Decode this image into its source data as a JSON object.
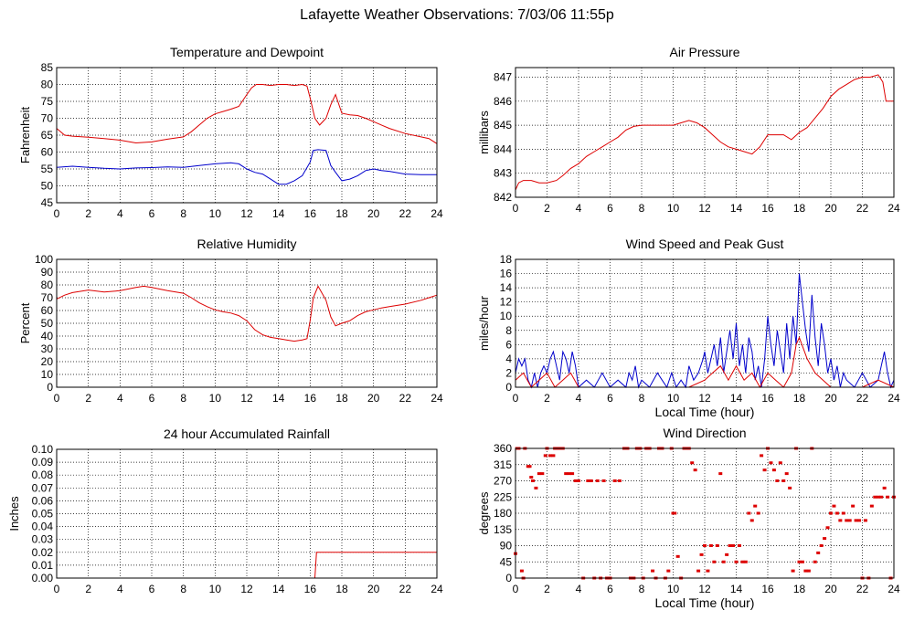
{
  "page_title": "Lafayette Weather Observations: 7/03/06 11:55p",
  "colors": {
    "red": "#dd0000",
    "blue": "#0000cc",
    "grid": "#000000",
    "axis": "#000000"
  },
  "chart_data": [
    {
      "id": "temp",
      "type": "line",
      "title": "Temperature and Dewpoint",
      "xlabel": "",
      "ylabel": "Fahrenheit",
      "xlim": [
        0,
        24
      ],
      "ylim": [
        45,
        85
      ],
      "xticks": [
        0,
        2,
        4,
        6,
        8,
        10,
        12,
        14,
        16,
        18,
        20,
        22,
        24
      ],
      "yticks": [
        45,
        50,
        55,
        60,
        65,
        70,
        75,
        80,
        85
      ],
      "grid": true,
      "series": [
        {
          "color": "#dd0000",
          "x": [
            0,
            0.5,
            1,
            2,
            3,
            4,
            5,
            6,
            7,
            8,
            8.5,
            9,
            9.5,
            10,
            10.5,
            11,
            11.5,
            12,
            12.3,
            12.6,
            13,
            13.5,
            14,
            14.5,
            15,
            15.5,
            15.8,
            16,
            16.3,
            16.6,
            17,
            17.3,
            17.6,
            18,
            18.5,
            19,
            19.5,
            20,
            20.5,
            21,
            22,
            23,
            23.5,
            24
          ],
          "y": [
            67,
            65,
            64.7,
            64.4,
            64,
            63.5,
            62.7,
            63,
            63.8,
            64.5,
            66,
            68,
            70,
            71.3,
            72,
            72.7,
            73.5,
            77,
            79,
            80,
            80,
            79.7,
            80,
            80,
            79.7,
            80,
            79.5,
            76,
            70,
            68,
            70,
            74,
            77,
            71.5,
            71,
            70.8,
            70,
            69,
            68,
            67,
            65.5,
            64.5,
            64,
            62.5
          ]
        },
        {
          "color": "#0000cc",
          "x": [
            0,
            1,
            2,
            3,
            4,
            5,
            6,
            7,
            8,
            9,
            10,
            11,
            11.5,
            12,
            12.5,
            13,
            13.5,
            14,
            14.5,
            15,
            15.5,
            16,
            16.2,
            16.5,
            17,
            17.3,
            17.6,
            18,
            18.5,
            19,
            19.5,
            20,
            20.5,
            21,
            22,
            23,
            24
          ],
          "y": [
            55.5,
            55.8,
            55.5,
            55.2,
            55,
            55.3,
            55.4,
            55.6,
            55.5,
            56,
            56.5,
            56.8,
            56.5,
            55,
            54,
            53.5,
            52,
            50.5,
            50.5,
            51.5,
            53,
            57,
            60.5,
            60.7,
            60.5,
            56,
            54,
            51.5,
            52,
            53,
            54.5,
            55,
            54.5,
            54.3,
            53.5,
            53.3,
            53.3
          ]
        }
      ]
    },
    {
      "id": "pressure",
      "type": "line",
      "title": "Air Pressure",
      "xlabel": "",
      "ylabel": "millibars",
      "xlim": [
        0,
        24
      ],
      "ylim": [
        842,
        847.4
      ],
      "xticks": [
        0,
        2,
        4,
        6,
        8,
        10,
        12,
        14,
        16,
        18,
        20,
        22,
        24
      ],
      "yticks": [
        842,
        843,
        844,
        845,
        846,
        847
      ],
      "grid": true,
      "series": [
        {
          "color": "#dd0000",
          "x": [
            0,
            0.2,
            0.5,
            1,
            1.5,
            2,
            2.6,
            3,
            3.5,
            4,
            4.5,
            5,
            5.5,
            6,
            6.5,
            7,
            7.5,
            8,
            9,
            10,
            10.5,
            11,
            11.5,
            12,
            12.5,
            13,
            13.5,
            14,
            14.5,
            15,
            15.5,
            16,
            16.5,
            17,
            17.5,
            18,
            18.5,
            19,
            19.5,
            20,
            20.5,
            21,
            21.5,
            22,
            22.5,
            23,
            23.3,
            23.5,
            24
          ],
          "y": [
            842.3,
            842.6,
            842.7,
            842.7,
            842.6,
            842.6,
            842.7,
            842.9,
            843.2,
            843.4,
            843.7,
            843.9,
            844.1,
            844.3,
            844.5,
            844.8,
            844.95,
            845,
            845,
            845,
            845.1,
            845.2,
            845.1,
            844.9,
            844.6,
            844.3,
            844.1,
            844,
            843.9,
            843.8,
            844.1,
            844.6,
            844.6,
            844.6,
            844.4,
            844.7,
            844.9,
            845.3,
            845.7,
            846.2,
            846.5,
            846.7,
            846.9,
            847,
            847,
            847.1,
            846.8,
            846,
            846
          ]
        }
      ]
    },
    {
      "id": "humidity",
      "type": "line",
      "title": "Relative Humidity",
      "xlabel": "",
      "ylabel": "Percent",
      "xlim": [
        0,
        24
      ],
      "ylim": [
        0,
        100
      ],
      "xticks": [
        0,
        2,
        4,
        6,
        8,
        10,
        12,
        14,
        16,
        18,
        20,
        22,
        24
      ],
      "yticks": [
        0,
        10,
        20,
        30,
        40,
        50,
        60,
        70,
        80,
        90,
        100
      ],
      "grid": true,
      "series": [
        {
          "color": "#dd0000",
          "x": [
            0,
            0.5,
            1,
            2,
            3,
            4,
            5,
            5.5,
            6,
            7,
            8,
            8.5,
            9,
            9.5,
            10,
            10.5,
            11,
            11.5,
            12,
            12.5,
            13,
            13.5,
            14,
            14.5,
            15,
            15.5,
            15.8,
            16,
            16.2,
            16.5,
            17,
            17.3,
            17.6,
            18,
            18.5,
            19,
            19.5,
            20,
            20.5,
            21,
            22,
            23,
            23.5,
            24
          ],
          "y": [
            69,
            72,
            74,
            76,
            74.5,
            75.5,
            78,
            79,
            78,
            75.5,
            73.5,
            70,
            66,
            63,
            60.5,
            59,
            58,
            56,
            52,
            45,
            41,
            39,
            38,
            37,
            36,
            37,
            38,
            52,
            70,
            79,
            68,
            55,
            48,
            50,
            52,
            56,
            59,
            60.5,
            62,
            63,
            65,
            68,
            70,
            72
          ]
        }
      ]
    },
    {
      "id": "wind",
      "type": "line",
      "title": "Wind Speed and Peak Gust",
      "xlabel": "Local Time (hour)",
      "ylabel": "miles/hour",
      "xlim": [
        0,
        24
      ],
      "ylim": [
        0,
        18
      ],
      "xticks": [
        0,
        2,
        4,
        6,
        8,
        10,
        12,
        14,
        16,
        18,
        20,
        22,
        24
      ],
      "yticks": [
        0,
        2,
        4,
        6,
        8,
        10,
        12,
        14,
        16,
        18
      ],
      "grid": true,
      "series": [
        {
          "color": "#0000cc",
          "x": [
            0,
            0.2,
            0.4,
            0.6,
            0.8,
            1,
            1.2,
            1.4,
            1.6,
            1.8,
            2,
            2.2,
            2.4,
            2.6,
            2.8,
            3,
            3.2,
            3.4,
            3.6,
            3.8,
            4,
            4.5,
            5,
            5.5,
            6,
            6.5,
            7,
            7.2,
            7.4,
            7.6,
            7.8,
            8,
            8.5,
            9,
            9.3,
            9.6,
            9.9,
            10.2,
            10.5,
            10.8,
            11,
            11.3,
            11.6,
            11.9,
            12,
            12.2,
            12.4,
            12.6,
            12.8,
            13,
            13.2,
            13.4,
            13.6,
            13.8,
            14,
            14.2,
            14.4,
            14.6,
            14.8,
            15,
            15.2,
            15.4,
            15.6,
            15.8,
            16,
            16.2,
            16.4,
            16.6,
            16.8,
            17,
            17.2,
            17.4,
            17.6,
            17.8,
            18,
            18.2,
            18.4,
            18.6,
            18.8,
            19,
            19.2,
            19.4,
            19.6,
            19.8,
            20,
            20.2,
            20.4,
            20.6,
            20.8,
            21,
            21.5,
            22,
            22.5,
            23,
            23.2,
            23.4,
            23.6,
            23.8,
            24
          ],
          "y": [
            2,
            4,
            3,
            4,
            1,
            0,
            2,
            0,
            2,
            3,
            2,
            4,
            5,
            3,
            1,
            5,
            4,
            2,
            5,
            3,
            0,
            1,
            0,
            2,
            0,
            1,
            0,
            2,
            1,
            3,
            0,
            1,
            0,
            2,
            1,
            0,
            2,
            0,
            1,
            0,
            3,
            1,
            2,
            4,
            5,
            2,
            4,
            6,
            3,
            7,
            2,
            5,
            8,
            4,
            9,
            3,
            6,
            2,
            7,
            5,
            1,
            3,
            0,
            4,
            10,
            6,
            3,
            8,
            5,
            2,
            9,
            4,
            10,
            6,
            16,
            12,
            8,
            5,
            13,
            7,
            3,
            9,
            6,
            2,
            4,
            1,
            3,
            0,
            2,
            1,
            0,
            2,
            0,
            1,
            3,
            5,
            2,
            0,
            1
          ]
        },
        {
          "color": "#dd0000",
          "x": [
            0,
            0.5,
            1,
            1.5,
            2,
            2.5,
            3,
            3.5,
            4,
            5,
            6,
            7,
            8,
            9,
            10,
            11,
            12,
            12.5,
            13,
            13.5,
            14,
            14.5,
            15,
            15.5,
            16,
            16.5,
            17,
            17.5,
            17.8,
            18,
            18.5,
            19,
            19.5,
            20,
            21,
            22,
            23,
            24
          ],
          "y": [
            1,
            2,
            0,
            1,
            2,
            0,
            1,
            2,
            0,
            0,
            0,
            0,
            0,
            0,
            0,
            0,
            1,
            2,
            3,
            1,
            3,
            1,
            2,
            0,
            2,
            1,
            0,
            2,
            6,
            7,
            4,
            2,
            1,
            0,
            0,
            0,
            1,
            0
          ]
        }
      ]
    },
    {
      "id": "rain",
      "type": "line",
      "title": "24 hour Accumulated Rainfall",
      "xlabel": "",
      "ylabel": "Inches",
      "xlim": [
        0,
        24
      ],
      "ylim": [
        0,
        0.1
      ],
      "xticks": [
        0,
        2,
        4,
        6,
        8,
        10,
        12,
        14,
        16,
        18,
        20,
        22,
        24
      ],
      "yticks": [
        "0.00",
        "0.01",
        "0.02",
        "0.03",
        "0.04",
        "0.05",
        "0.06",
        "0.07",
        "0.08",
        "0.09",
        "0.10"
      ],
      "grid": true,
      "series": [
        {
          "color": "#dd0000",
          "x": [
            0,
            16.3,
            16.4,
            24
          ],
          "y": [
            0,
            0,
            0.02,
            0.02
          ]
        }
      ]
    },
    {
      "id": "direction",
      "type": "scatter",
      "title": "Wind Direction",
      "xlabel": "Local Time (hour)",
      "ylabel": "degrees",
      "xlim": [
        0,
        24
      ],
      "ylim": [
        0,
        360
      ],
      "xticks": [
        0,
        2,
        4,
        6,
        8,
        10,
        12,
        14,
        16,
        18,
        20,
        22,
        24
      ],
      "yticks": [
        0,
        45,
        90,
        135,
        180,
        225,
        270,
        315,
        360
      ],
      "grid": true,
      "series": [
        {
          "color": "#dd0000",
          "x": [
            0,
            0.1,
            0.2,
            0.4,
            0.5,
            0.6,
            0.8,
            0.9,
            1,
            1.1,
            1.3,
            1.5,
            1.7,
            1.9,
            2,
            2.2,
            2.4,
            2.5,
            2.7,
            2.9,
            3,
            3.2,
            3.4,
            3.6,
            3.8,
            4,
            4.3,
            4.6,
            4.8,
            5,
            5.2,
            5.4,
            5.6,
            5.8,
            6,
            6.3,
            6.6,
            6.9,
            7.1,
            7.3,
            7.5,
            7.7,
            7.9,
            8.1,
            8.3,
            8.5,
            8.7,
            8.9,
            9.1,
            9.3,
            9.5,
            9.7,
            9.9,
            10,
            10.1,
            10.3,
            10.5,
            10.7,
            10.9,
            11,
            11.2,
            11.4,
            11.6,
            11.8,
            12,
            12.2,
            12.4,
            12.6,
            12.8,
            13,
            13.2,
            13.4,
            13.6,
            13.8,
            14,
            14.2,
            14.4,
            14.6,
            14.8,
            15,
            15.2,
            15.4,
            15.6,
            15.8,
            16,
            16.2,
            16.4,
            16.6,
            16.8,
            17,
            17.2,
            17.4,
            17.6,
            17.8,
            18,
            18.2,
            18.4,
            18.6,
            18.8,
            19,
            19.2,
            19.4,
            19.6,
            19.8,
            20,
            20.2,
            20.4,
            20.6,
            20.8,
            21,
            21.2,
            21.4,
            21.6,
            21.8,
            22,
            22.2,
            22.4,
            22.6,
            22.8,
            23,
            23.2,
            23.4,
            23.6,
            23.8,
            24
          ],
          "y": [
            68,
            360,
            360,
            20,
            0,
            360,
            310,
            310,
            280,
            270,
            250,
            290,
            290,
            340,
            360,
            340,
            340,
            360,
            360,
            360,
            360,
            290,
            290,
            290,
            270,
            270,
            0,
            270,
            270,
            0,
            270,
            0,
            270,
            0,
            0,
            270,
            270,
            360,
            360,
            0,
            0,
            360,
            360,
            0,
            360,
            360,
            20,
            0,
            360,
            360,
            0,
            20,
            360,
            180,
            180,
            60,
            0,
            360,
            360,
            360,
            320,
            300,
            20,
            65,
            90,
            20,
            90,
            45,
            90,
            290,
            45,
            65,
            90,
            90,
            45,
            90,
            45,
            45,
            180,
            160,
            200,
            180,
            340,
            300,
            360,
            320,
            300,
            270,
            320,
            270,
            290,
            250,
            20,
            360,
            45,
            45,
            20,
            20,
            360,
            45,
            70,
            90,
            110,
            140,
            180,
            200,
            180,
            160,
            180,
            160,
            160,
            200,
            160,
            160,
            0,
            160,
            0,
            200,
            225,
            225,
            225,
            250,
            225,
            0,
            225
          ]
        }
      ]
    }
  ]
}
